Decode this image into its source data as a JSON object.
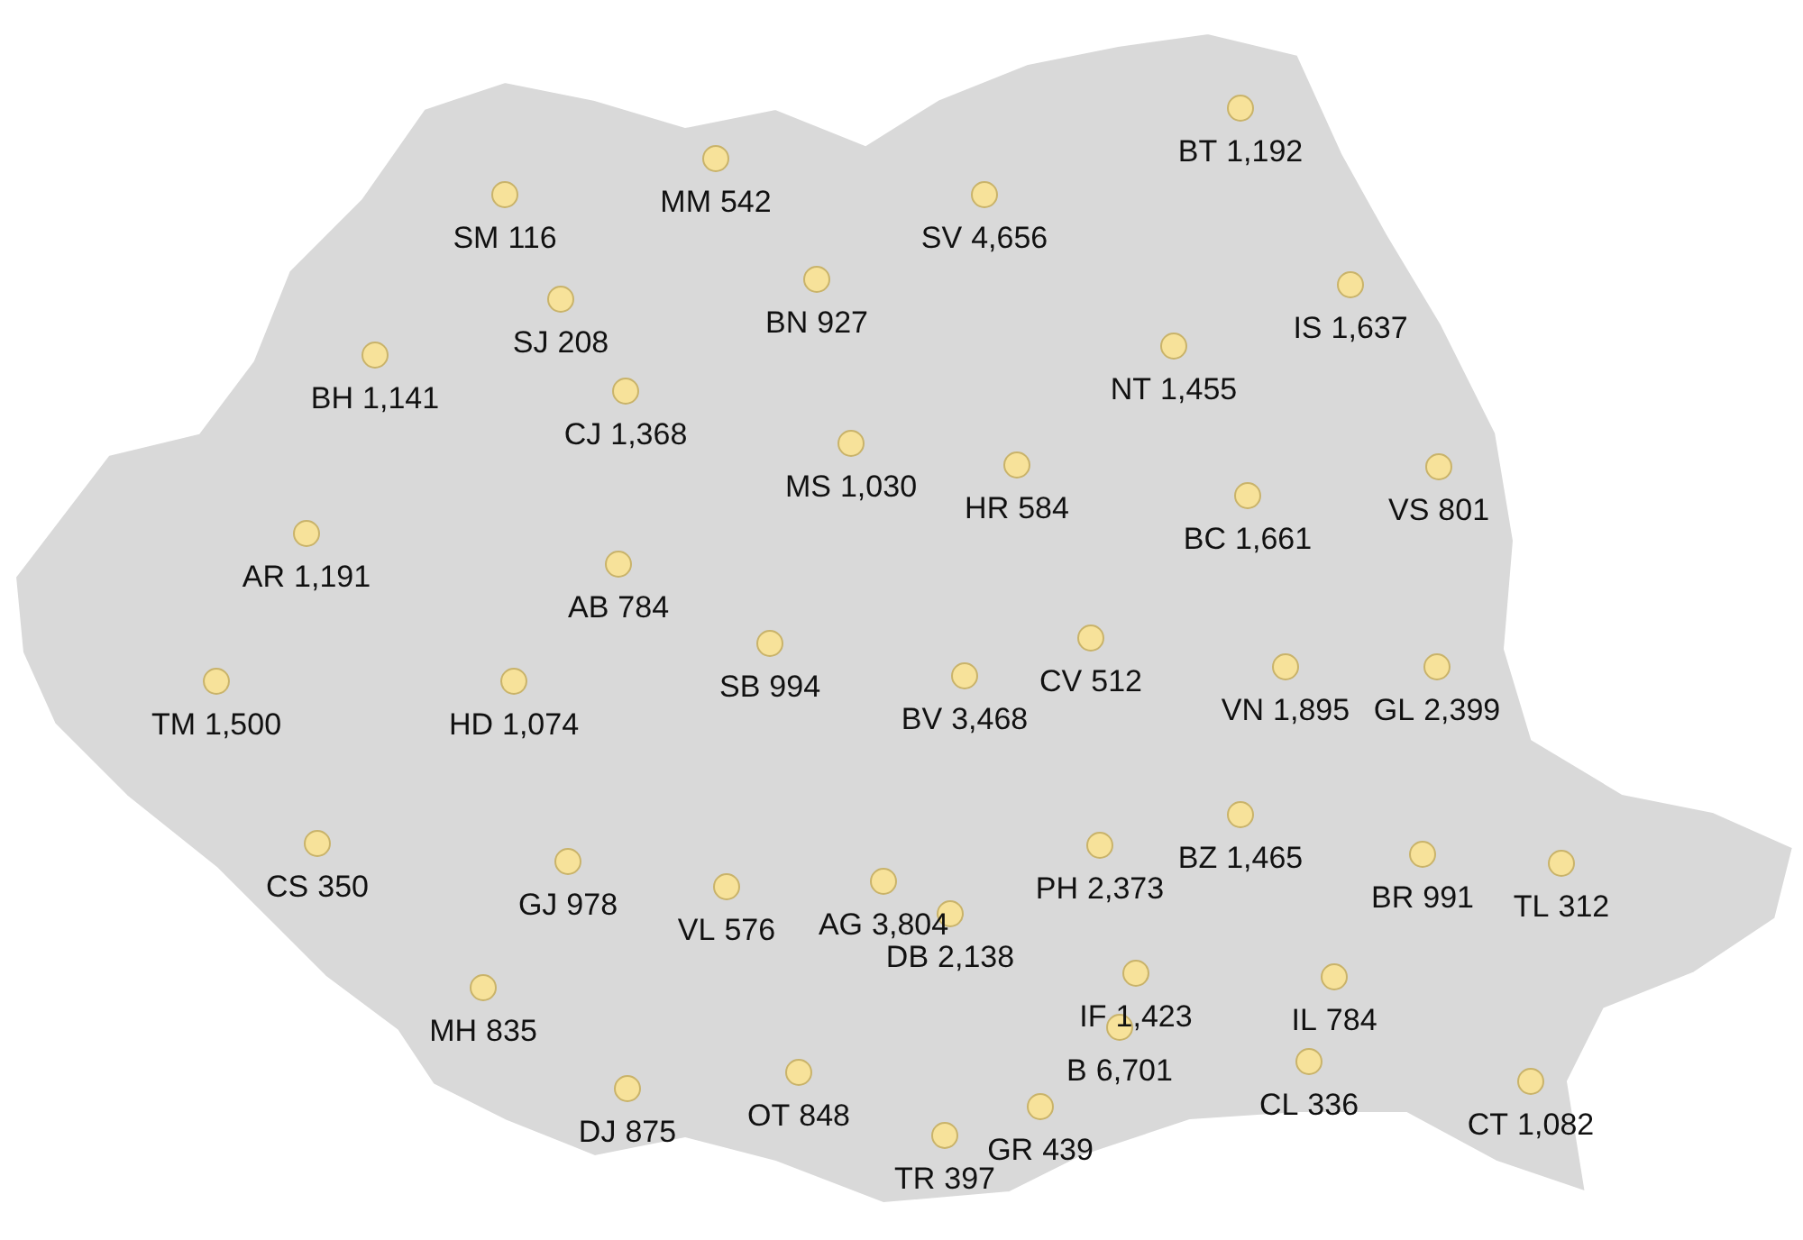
{
  "chart_data": {
    "type": "other",
    "categories": [
      "SM",
      "MM",
      "SV",
      "BT",
      "BN",
      "SJ",
      "IS",
      "BH",
      "CJ",
      "NT",
      "MS",
      "HR",
      "BC",
      "VS",
      "AR",
      "AB",
      "SB",
      "CV",
      "BV",
      "VN",
      "GL",
      "TM",
      "HD",
      "CS",
      "BZ",
      "PH",
      "BR",
      "TL",
      "GJ",
      "VL",
      "AG",
      "DB",
      "IF",
      "IL",
      "MH",
      "B",
      "CL",
      "CT",
      "DJ",
      "OT",
      "GR",
      "TR"
    ],
    "values": [
      116,
      542,
      4656,
      1192,
      927,
      208,
      1637,
      1141,
      1368,
      1455,
      1030,
      584,
      1661,
      801,
      1191,
      784,
      994,
      512,
      3468,
      1895,
      2399,
      1500,
      1074,
      350,
      1465,
      2373,
      991,
      312,
      978,
      576,
      3804,
      2138,
      1423,
      784,
      835,
      6701,
      336,
      1082,
      875,
      848,
      439,
      397
    ],
    "value_labels": [
      "116",
      "542",
      "4,656",
      "1,192",
      "927",
      "208",
      "1,637",
      "1,141",
      "1,368",
      "1,455",
      "1,030",
      "584",
      "1,661",
      "801",
      "1,191",
      "784",
      "994",
      "512",
      "3,468",
      "1,895",
      "2,399",
      "1,500",
      "1,074",
      "350",
      "1,465",
      "2,373",
      "991",
      "312",
      "978",
      "576",
      "3,804",
      "2,138",
      "1,423",
      "784",
      "835",
      "6,701",
      "336",
      "1,082",
      "875",
      "848",
      "439",
      "397"
    ],
    "color": "#f7e29a",
    "data_labels": true
  }
}
